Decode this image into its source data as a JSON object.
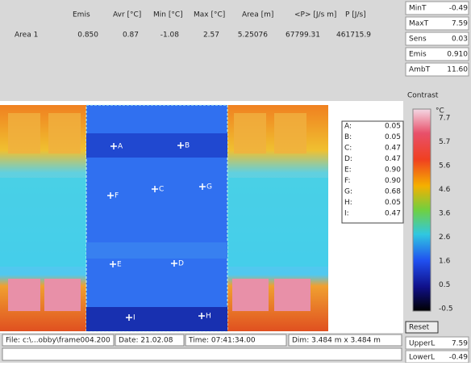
{
  "table": {
    "headers": [
      "Emis",
      "Avr [°C]",
      "Min [°C]",
      "Max [°C]",
      "Area [m]",
      "<P> [J/s m]",
      "P [J/s]"
    ],
    "rows": [
      [
        "Area 1",
        "0.850",
        "0.87",
        "-1.08",
        "2.57",
        "5.25076",
        "67799.31",
        "461715.9"
      ]
    ]
  },
  "params": [
    {
      "label": "MinT",
      "value": "-0.49"
    },
    {
      "label": "MaxT",
      "value": "7.59"
    },
    {
      "label": "Sens",
      "value": "0.03"
    },
    {
      "label": "Emis",
      "value": "0.910"
    },
    {
      "label": "AmbT",
      "value": "11.60"
    }
  ],
  "contrast": {
    "title": "Contrast",
    "unit": "°C",
    "scale": [
      "7.7",
      "5.7",
      "5.6",
      "4.6",
      "3.6",
      "2.6",
      "1.6",
      "0.5",
      "-0.5"
    ]
  },
  "reset": "Reset",
  "limits": [
    {
      "label": "UpperL",
      "value": "7.59"
    },
    {
      "label": "LowerL",
      "value": "-0.49"
    }
  ],
  "image_markers": [
    "A",
    "B",
    "C",
    "D",
    "E",
    "F",
    "G",
    "H",
    "I"
  ],
  "markers": [
    {
      "label": "A:",
      "value": "0.05"
    },
    {
      "label": "B:",
      "value": "0.05"
    },
    {
      "label": "C:",
      "value": "0.47"
    },
    {
      "label": "D:",
      "value": "0.47"
    },
    {
      "label": "E:",
      "value": "0.90"
    },
    {
      "label": "F:",
      "value": "0.90"
    },
    {
      "label": "G:",
      "value": "0.68"
    },
    {
      "label": "H:",
      "value": "0.05"
    },
    {
      "label": "I:",
      "value": "0.47"
    }
  ],
  "status": [
    "File: c:\\...obby\\frame004.200",
    "Date: 21.02.08",
    "Time: 07:41:34.00",
    "Dim: 3.484 m x 3.484 m"
  ]
}
